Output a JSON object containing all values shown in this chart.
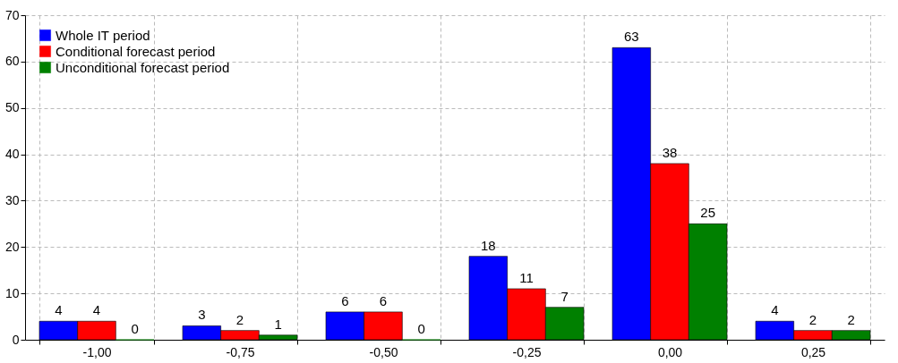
{
  "chart_data": {
    "type": "bar",
    "categories": [
      "-1,00",
      "-0,75",
      "-0,50",
      "-0,25",
      "0,00",
      "0,25"
    ],
    "series": [
      {
        "name": "Whole IT period",
        "color": "#0000ff",
        "values": [
          4,
          3,
          6,
          18,
          63,
          4
        ]
      },
      {
        "name": "Conditional forecast period",
        "color": "#ff0000",
        "values": [
          4,
          2,
          6,
          11,
          38,
          2
        ]
      },
      {
        "name": "Unconditional forecast period",
        "color": "#008000",
        "values": [
          0,
          1,
          0,
          7,
          25,
          2
        ]
      }
    ],
    "ylim": [
      0,
      70
    ],
    "yticks": [
      0,
      10,
      20,
      30,
      40,
      50,
      60,
      70
    ],
    "grid": true,
    "legend": "top left",
    "data_labels": true
  }
}
